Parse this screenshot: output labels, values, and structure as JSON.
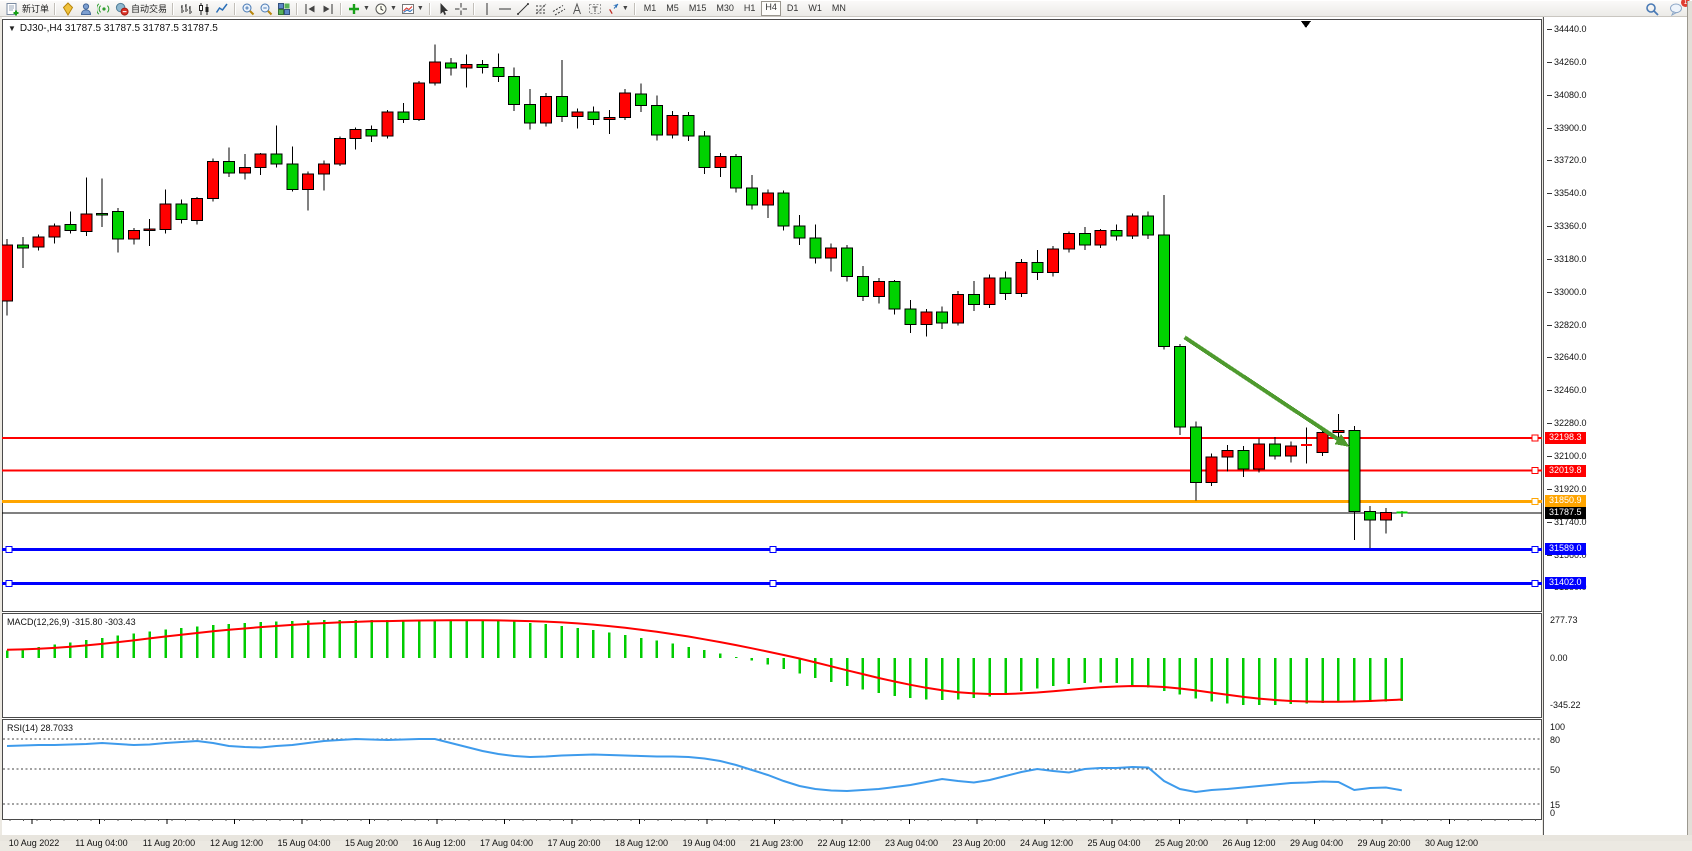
{
  "window": {
    "app": "MetaTrader terminal"
  },
  "toolbar": {
    "groups": [
      {
        "items": [
          {
            "name": "new-order-button",
            "icon": "new-order",
            "label": "新订单"
          }
        ]
      },
      {
        "items": [
          {
            "name": "metaeditor-button",
            "icon": "crystal"
          },
          {
            "name": "market-watch-button",
            "icon": "person"
          },
          {
            "name": "signals-button",
            "icon": "signal"
          },
          {
            "name": "autotrading-button",
            "icon": "autotrade",
            "label": "自动交易"
          }
        ]
      },
      {
        "items": [
          {
            "name": "bar-chart-button",
            "icon": "chart-bars"
          },
          {
            "name": "candlestick-chart-button",
            "icon": "chart-candles"
          },
          {
            "name": "line-chart-button",
            "icon": "chart-line"
          }
        ]
      },
      {
        "items": [
          {
            "name": "zoom-in-button",
            "icon": "zoom-in"
          },
          {
            "name": "zoom-out-button",
            "icon": "zoom-out"
          },
          {
            "name": "tile-windows-button",
            "icon": "tile"
          }
        ]
      },
      {
        "items": [
          {
            "name": "auto-scroll-button",
            "icon": "autoscroll"
          },
          {
            "name": "chart-shift-button",
            "icon": "shift"
          }
        ]
      },
      {
        "items": [
          {
            "name": "indicators-button",
            "icon": "indicator-plus",
            "dropdown": true
          },
          {
            "name": "periods-button",
            "icon": "clock",
            "dropdown": true
          },
          {
            "name": "templates-button",
            "icon": "template",
            "dropdown": true
          }
        ]
      },
      {
        "items": [
          {
            "name": "cursor-button",
            "icon": "cursor"
          },
          {
            "name": "crosshair-button",
            "icon": "crosshair"
          }
        ]
      },
      {
        "items": [
          {
            "name": "vertical-line-button",
            "icon": "vline"
          },
          {
            "name": "horizontal-line-button",
            "icon": "hline"
          },
          {
            "name": "trendline-button",
            "icon": "trendline"
          },
          {
            "name": "fibonacci-button",
            "icon": "fibo"
          },
          {
            "name": "channel-button",
            "icon": "channel"
          },
          {
            "name": "text-button",
            "icon": "text-a"
          },
          {
            "name": "label-button",
            "icon": "label-t"
          },
          {
            "name": "arrows-button",
            "icon": "arrows",
            "dropdown": true
          }
        ]
      }
    ],
    "timeframes": {
      "items": [
        "M1",
        "M5",
        "M15",
        "M30",
        "H1",
        "H4",
        "D1",
        "W1",
        "MN"
      ],
      "active": "H4"
    },
    "right": [
      {
        "name": "search-button",
        "icon": "search"
      },
      {
        "name": "chat-button",
        "icon": "chat",
        "badge": "1"
      }
    ]
  },
  "chart": {
    "marker": "▼",
    "info_line": "DJ30-,H4  31787.5 31787.5 31787.5 31787.5"
  },
  "chart_data": {
    "type": "candlestick",
    "symbol": "DJ30-",
    "timeframe": "H4",
    "ohlc_display": {
      "open": 31787.5,
      "high": 31787.5,
      "low": 31787.5,
      "close": 31787.5
    },
    "price_axis": {
      "max_label": 34440.0,
      "min_label": 31380.0,
      "step": 180,
      "decimals": 1
    },
    "time_labels": [
      "10 Aug 2022",
      "11 Aug 04:00",
      "11 Aug 20:00",
      "12 Aug 12:00",
      "15 Aug 04:00",
      "15 Aug 20:00",
      "16 Aug 12:00",
      "17 Aug 04:00",
      "17 Aug 20:00",
      "18 Aug 12:00",
      "19 Aug 04:00",
      "21 Aug 23:00",
      "22 Aug 12:00",
      "23 Aug 04:00",
      "23 Aug 20:00",
      "24 Aug 12:00",
      "25 Aug 04:00",
      "25 Aug 20:00",
      "26 Aug 12:00",
      "29 Aug 04:00",
      "29 Aug 20:00",
      "30 Aug 12:00"
    ],
    "candles": [
      [
        32950,
        33290,
        32870,
        33255
      ],
      [
        33255,
        33300,
        33130,
        33240
      ],
      [
        33245,
        33315,
        33225,
        33300
      ],
      [
        33300,
        33375,
        33265,
        33360
      ],
      [
        33370,
        33440,
        33320,
        33335
      ],
      [
        33330,
        33625,
        33305,
        33425
      ],
      [
        33430,
        33620,
        33355,
        33420
      ],
      [
        33440,
        33460,
        33215,
        33290
      ],
      [
        33290,
        33350,
        33260,
        33335
      ],
      [
        33335,
        33400,
        33250,
        33345
      ],
      [
        33340,
        33560,
        33320,
        33480
      ],
      [
        33480,
        33505,
        33375,
        33395
      ],
      [
        33390,
        33520,
        33370,
        33510
      ],
      [
        33510,
        33730,
        33495,
        33715
      ],
      [
        33715,
        33790,
        33630,
        33650
      ],
      [
        33650,
        33755,
        33615,
        33680
      ],
      [
        33680,
        33760,
        33640,
        33755
      ],
      [
        33755,
        33910,
        33680,
        33700
      ],
      [
        33700,
        33795,
        33550,
        33560
      ],
      [
        33560,
        33660,
        33445,
        33645
      ],
      [
        33645,
        33720,
        33555,
        33700
      ],
      [
        33700,
        33850,
        33690,
        33840
      ],
      [
        33840,
        33900,
        33780,
        33890
      ],
      [
        33890,
        33910,
        33820,
        33855
      ],
      [
        33855,
        33995,
        33840,
        33985
      ],
      [
        33985,
        34035,
        33925,
        33945
      ],
      [
        33945,
        34155,
        33935,
        34145
      ],
      [
        34145,
        34355,
        34130,
        34260
      ],
      [
        34255,
        34280,
        34185,
        34225
      ],
      [
        34225,
        34300,
        34120,
        34245
      ],
      [
        34245,
        34270,
        34195,
        34230
      ],
      [
        34230,
        34305,
        34150,
        34180
      ],
      [
        34180,
        34230,
        33990,
        34025
      ],
      [
        34025,
        34110,
        33890,
        33925
      ],
      [
        33925,
        34090,
        33905,
        34070
      ],
      [
        34070,
        34270,
        33930,
        33960
      ],
      [
        33960,
        34005,
        33895,
        33985
      ],
      [
        33985,
        34015,
        33915,
        33945
      ],
      [
        33945,
        33995,
        33865,
        33955
      ],
      [
        33955,
        34110,
        33940,
        34090
      ],
      [
        34085,
        34140,
        33985,
        34020
      ],
      [
        34020,
        34075,
        33830,
        33860
      ],
      [
        33860,
        33990,
        33840,
        33965
      ],
      [
        33965,
        33985,
        33825,
        33855
      ],
      [
        33855,
        33880,
        33645,
        33680
      ],
      [
        33680,
        33760,
        33630,
        33740
      ],
      [
        33740,
        33755,
        33545,
        33570
      ],
      [
        33570,
        33640,
        33450,
        33475
      ],
      [
        33475,
        33560,
        33405,
        33540
      ],
      [
        33540,
        33555,
        33335,
        33360
      ],
      [
        33360,
        33420,
        33255,
        33295
      ],
      [
        33295,
        33370,
        33155,
        33185
      ],
      [
        33185,
        33265,
        33110,
        33240
      ],
      [
        33240,
        33255,
        33055,
        33085
      ],
      [
        33085,
        33140,
        32950,
        32975
      ],
      [
        32975,
        33075,
        32935,
        33055
      ],
      [
        33055,
        33065,
        32875,
        32905
      ],
      [
        32905,
        32955,
        32775,
        32820
      ],
      [
        32820,
        32905,
        32755,
        32890
      ],
      [
        32890,
        32920,
        32795,
        32830
      ],
      [
        32830,
        33005,
        32815,
        32985
      ],
      [
        32985,
        33060,
        32895,
        32930
      ],
      [
        32930,
        33095,
        32910,
        33075
      ],
      [
        33075,
        33110,
        32955,
        32990
      ],
      [
        32990,
        33180,
        32970,
        33160
      ],
      [
        33160,
        33230,
        33065,
        33105
      ],
      [
        33105,
        33250,
        33085,
        33235
      ],
      [
        33235,
        33330,
        33215,
        33320
      ],
      [
        33320,
        33355,
        33230,
        33255
      ],
      [
        33255,
        33345,
        33240,
        33335
      ],
      [
        33335,
        33370,
        33280,
        33305
      ],
      [
        33305,
        33430,
        33290,
        33415
      ],
      [
        33415,
        33440,
        33290,
        33310
      ],
      [
        33310,
        33530,
        32685,
        32700
      ],
      [
        32700,
        32715,
        32215,
        32260
      ],
      [
        32260,
        32290,
        31855,
        31955
      ],
      [
        31955,
        32115,
        31935,
        32095
      ],
      [
        32095,
        32160,
        32015,
        32130
      ],
      [
        32130,
        32155,
        31985,
        32030
      ],
      [
        32030,
        32195,
        32010,
        32165
      ],
      [
        32165,
        32205,
        32080,
        32100
      ],
      [
        32100,
        32180,
        32065,
        32155
      ],
      [
        32155,
        32255,
        32060,
        32160
      ],
      [
        32120,
        32255,
        32100,
        32230
      ],
      [
        32230,
        32330,
        32175,
        32240
      ],
      [
        32240,
        32265,
        31640,
        31795
      ],
      [
        31795,
        31825,
        31595,
        31750
      ],
      [
        31750,
        31815,
        31675,
        31790
      ],
      [
        31790,
        31800,
        31765,
        31787.5
      ]
    ],
    "hlines": [
      {
        "name": "resistance-line-upper",
        "price": 32198.3,
        "color": "#FF0000",
        "width": 2,
        "handles": "right"
      },
      {
        "name": "resistance-line-lower",
        "price": 32019.8,
        "color": "#FF0000",
        "width": 2,
        "handles": "right"
      },
      {
        "name": "support-line-orange",
        "price": 31850.9,
        "color": "#FFA500",
        "width": 3,
        "handles": "right"
      },
      {
        "name": "current-price-line",
        "price": 31787.5,
        "color": "#000000",
        "width": 1,
        "handles": "none"
      },
      {
        "name": "support-line-blue-1",
        "price": 31589.0,
        "color": "#0000FF",
        "width": 3,
        "handles": "both"
      },
      {
        "name": "support-line-blue-2",
        "price": 31402.0,
        "color": "#0000FF",
        "width": 3,
        "handles": "both"
      }
    ],
    "arrow": {
      "from_bar": 74.3,
      "from_price": 32750,
      "to_bar": 84.7,
      "to_price": 32150
    },
    "indicators": {
      "macd": {
        "label": "MACD(12,26,9)",
        "display": "MACD(12,26,9) -315.80 -303.43",
        "main": -315.8,
        "signal": -303.43,
        "axis_max": 277.73,
        "axis_mid": 0.0,
        "axis_min": -345.22,
        "histogram": [
          55,
          68,
          82,
          97,
          113,
          130,
          147,
          163,
          179,
          194,
          208,
          220,
          231,
          241,
          250,
          257,
          263,
          268,
          272,
          275,
          276.5,
          277.7,
          277.5,
          277,
          276.5,
          276,
          276.5,
          277,
          277.5,
          277,
          275,
          271,
          265,
          257,
          247,
          235,
          221,
          205,
          187,
          168,
          148,
          127,
          105,
          82,
          58,
          33,
          8,
          -18,
          -48,
          -80,
          -112,
          -145,
          -176,
          -205,
          -232,
          -256,
          -276,
          -292,
          -302,
          -306,
          -303,
          -294,
          -280,
          -262,
          -242,
          -222,
          -204,
          -190,
          -182,
          -180,
          -184,
          -196,
          -215,
          -240,
          -268,
          -295,
          -318,
          -334,
          -343,
          -345.2,
          -342,
          -337,
          -332,
          -328,
          -325,
          -322,
          -320,
          -318,
          -315.8
        ],
        "signal_series": [
          60,
          63,
          68,
          74,
          82,
          92,
          103,
          116,
          129,
          143,
          157,
          170,
          183,
          195,
          206,
          216,
          226,
          234,
          242,
          249,
          255,
          260,
          264,
          268,
          270,
          272,
          274,
          275,
          276,
          276.5,
          276,
          275,
          273,
          270,
          266,
          260,
          253,
          244,
          233,
          221,
          207,
          192,
          175,
          157,
          137,
          116,
          94,
          71,
          47,
          22,
          -4,
          -32,
          -61,
          -90,
          -118,
          -146,
          -172,
          -196,
          -218,
          -236,
          -250,
          -259,
          -263,
          -263,
          -259,
          -252,
          -243,
          -233,
          -223,
          -214,
          -208,
          -205,
          -206,
          -212,
          -223,
          -237,
          -253,
          -269,
          -284,
          -297,
          -307,
          -314,
          -318,
          -320,
          -320,
          -318,
          -314,
          -309,
          -303.4
        ]
      },
      "rsi": {
        "label": "RSI(14)",
        "display": "RSI(14) 28.7033",
        "value": 28.7033,
        "levels": [
          80,
          50,
          15
        ],
        "axis_labels": [
          100,
          80,
          50,
          15,
          0
        ],
        "series": [
          73,
          73.5,
          74,
          74,
          74.5,
          75,
          76,
          75,
          74,
          74.5,
          76,
          77,
          78,
          76,
          73,
          72,
          71.5,
          73,
          74,
          76,
          78,
          79,
          80,
          79.5,
          79,
          79.5,
          80,
          80,
          76,
          72,
          68,
          65,
          63,
          62,
          62.5,
          63.5,
          64,
          64.5,
          64,
          63.5,
          63,
          62.5,
          62.5,
          62,
          60.5,
          58,
          54,
          49,
          44,
          38,
          33,
          30,
          28.5,
          28,
          29,
          30,
          32,
          34,
          37,
          40,
          38,
          36.5,
          39,
          43,
          47,
          50,
          48,
          46.5,
          50,
          51,
          51,
          52,
          51.5,
          38,
          30,
          27,
          29,
          30,
          31.5,
          33,
          34.5,
          36,
          36.5,
          37.5,
          37,
          29,
          31,
          31.5,
          28.7
        ]
      }
    },
    "colors": {
      "bull": "#FF0000",
      "bear": "#00D200",
      "wick": "#000000",
      "macd_hist": "#00CC00",
      "macd_signal": "#FF0000",
      "rsi_line": "#3E9BEC",
      "arrow": "#4E9A2E",
      "tag_red": "#FF0000",
      "tag_orange": "#FFA500",
      "tag_black": "#000000",
      "tag_blue": "#0000FF"
    }
  }
}
